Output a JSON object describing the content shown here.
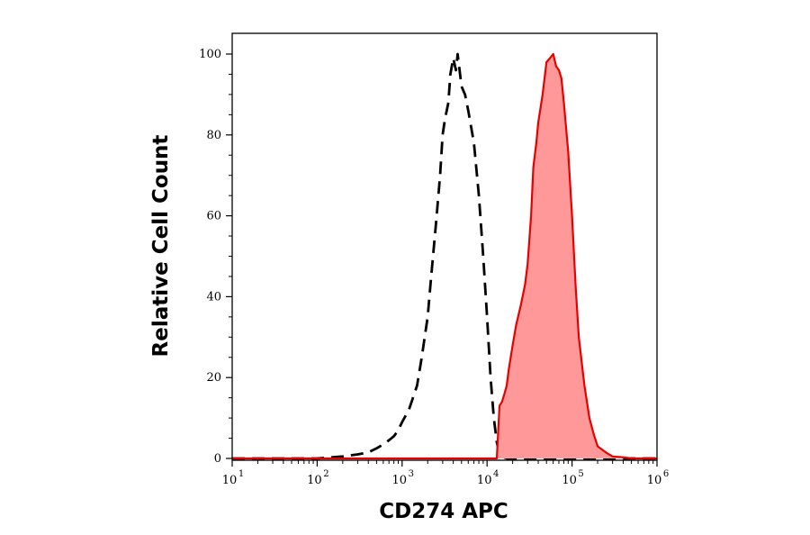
{
  "chart_data": {
    "type": "area",
    "xlabel": "CD274 APC",
    "ylabel": "Relative Cell Count",
    "x_scale": "log",
    "xlim": [
      10,
      1000000
    ],
    "ylim": [
      0,
      100
    ],
    "x_ticks": [
      {
        "base": "10",
        "exp": "1",
        "value": 10
      },
      {
        "base": "10",
        "exp": "2",
        "value": 100
      },
      {
        "base": "10",
        "exp": "3",
        "value": 1000
      },
      {
        "base": "10",
        "exp": "4",
        "value": 10000
      },
      {
        "base": "10",
        "exp": "5",
        "value": 100000
      },
      {
        "base": "10",
        "exp": "6",
        "value": 1000000
      }
    ],
    "y_ticks": [
      "0",
      "20",
      "40",
      "60",
      "80",
      "100"
    ],
    "grid": false,
    "series": [
      {
        "style": "dashed outline",
        "color": "#000000",
        "x": [
          10,
          100,
          200,
          300,
          400,
          500,
          600,
          700,
          800,
          900,
          1000,
          1200,
          1500,
          1700,
          2000,
          2200,
          2500,
          2800,
          3000,
          3200,
          3500,
          3700,
          4000,
          4300,
          4500,
          5000,
          5500,
          6000,
          7000,
          8000,
          9000,
          10000,
          11000,
          12000,
          13000,
          14000,
          15000,
          17000,
          20000,
          1000000
        ],
        "y": [
          0,
          0,
          0.5,
          1,
          1.5,
          2.5,
          3.5,
          4.5,
          5.5,
          7,
          9,
          12,
          18,
          25,
          35,
          45,
          58,
          70,
          80,
          84,
          88,
          95,
          99,
          96,
          100,
          92,
          90,
          86,
          78,
          65,
          50,
          35,
          20,
          10,
          4,
          1,
          0.5,
          0,
          0,
          0
        ]
      },
      {
        "style": "filled",
        "color": "#e60000",
        "fill": "#ff9999",
        "x": [
          10,
          13000,
          14000,
          15000,
          16000,
          17000,
          18000,
          20000,
          22000,
          25000,
          28000,
          30000,
          33000,
          35000,
          38000,
          40000,
          45000,
          50000,
          55000,
          60000,
          65000,
          70000,
          75000,
          80000,
          90000,
          100000,
          110000,
          120000,
          140000,
          160000,
          180000,
          200000,
          250000,
          300000,
          400000,
          500000,
          1000000
        ],
        "y": [
          0,
          0,
          13,
          14,
          16,
          18,
          22,
          28,
          33,
          38,
          43,
          48,
          60,
          72,
          78,
          83,
          90,
          98,
          99,
          100,
          97,
          96,
          94,
          88,
          76,
          60,
          43,
          30,
          18,
          10,
          6,
          3,
          1.5,
          0.5,
          0.3,
          0,
          0
        ]
      }
    ]
  }
}
